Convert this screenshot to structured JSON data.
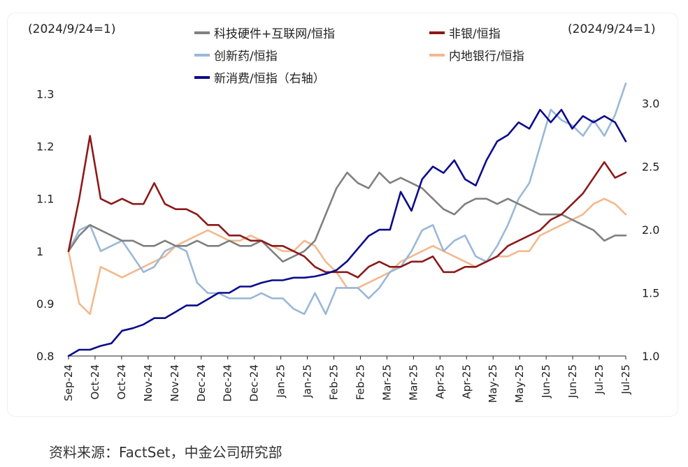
{
  "chart_data": {
    "type": "line",
    "left_axis_note": "(2024/9/24=1)",
    "right_axis_note": "(2024/9/24=1)",
    "ylim_left": [
      0.8,
      1.33
    ],
    "ylim_right": [
      1.0,
      3.2
    ],
    "yticks_left": [
      "0.8",
      "0.9",
      "1",
      "1.1",
      "1.2",
      "1.3"
    ],
    "yticks_right": [
      "1.0",
      "1.5",
      "2.0",
      "2.5",
      "3.0"
    ],
    "xticks": [
      "Sep-24",
      "Oct-24",
      "Oct-24",
      "Nov-24",
      "Nov-24",
      "Dec-24",
      "Dec-24",
      "Dec-24",
      "Jan-25",
      "Jan-25",
      "Feb-25",
      "Feb-25",
      "Mar-25",
      "Mar-25",
      "Apr-25",
      "Apr-25",
      "May-25",
      "May-25",
      "Jun-25",
      "Jun-25",
      "Jul-25",
      "Jul-25"
    ],
    "grid": false,
    "legend_position": "top",
    "series": [
      {
        "name": "科技硬件+互联网/恒指",
        "color": "#808080",
        "axis": "left",
        "values": [
          1.0,
          1.03,
          1.05,
          1.04,
          1.03,
          1.02,
          1.02,
          1.01,
          1.01,
          1.02,
          1.01,
          1.01,
          1.02,
          1.01,
          1.01,
          1.02,
          1.01,
          1.01,
          1.02,
          1.0,
          0.98,
          0.99,
          1.0,
          1.02,
          1.07,
          1.12,
          1.15,
          1.13,
          1.12,
          1.15,
          1.13,
          1.14,
          1.13,
          1.12,
          1.1,
          1.08,
          1.07,
          1.09,
          1.1,
          1.1,
          1.09,
          1.1,
          1.09,
          1.08,
          1.07,
          1.07,
          1.07,
          1.06,
          1.05,
          1.04,
          1.02,
          1.03,
          1.03
        ]
      },
      {
        "name": "非银/恒指",
        "color": "#8b1a1a",
        "axis": "left",
        "values": [
          1.0,
          1.1,
          1.22,
          1.1,
          1.09,
          1.1,
          1.09,
          1.09,
          1.13,
          1.09,
          1.08,
          1.08,
          1.07,
          1.05,
          1.05,
          1.03,
          1.03,
          1.02,
          1.02,
          1.01,
          1.01,
          1.0,
          0.99,
          0.97,
          0.96,
          0.96,
          0.96,
          0.95,
          0.97,
          0.98,
          0.97,
          0.97,
          0.98,
          0.98,
          0.99,
          0.96,
          0.96,
          0.97,
          0.97,
          0.98,
          0.99,
          1.01,
          1.02,
          1.03,
          1.04,
          1.06,
          1.07,
          1.09,
          1.11,
          1.14,
          1.17,
          1.14,
          1.15
        ]
      },
      {
        "name": "创新药/恒指",
        "color": "#9ab8d8",
        "axis": "left",
        "values": [
          1.0,
          1.04,
          1.05,
          1.0,
          1.01,
          1.02,
          0.99,
          0.96,
          0.97,
          1.0,
          1.01,
          1.0,
          0.94,
          0.92,
          0.92,
          0.91,
          0.91,
          0.91,
          0.92,
          0.91,
          0.91,
          0.89,
          0.88,
          0.92,
          0.88,
          0.93,
          0.93,
          0.93,
          0.91,
          0.93,
          0.96,
          0.97,
          1.0,
          1.04,
          1.05,
          1.0,
          1.02,
          1.03,
          0.99,
          0.98,
          1.01,
          1.05,
          1.1,
          1.13,
          1.2,
          1.27,
          1.25,
          1.24,
          1.22,
          1.25,
          1.22,
          1.26,
          1.32
        ]
      },
      {
        "name": "内地银行/恒指",
        "color": "#f2b98e",
        "axis": "left",
        "values": [
          1.0,
          0.9,
          0.88,
          0.97,
          0.96,
          0.95,
          0.96,
          0.97,
          0.98,
          0.99,
          1.01,
          1.02,
          1.03,
          1.04,
          1.03,
          1.02,
          1.02,
          1.03,
          1.02,
          1.01,
          1.0,
          1.0,
          1.02,
          1.01,
          0.98,
          0.96,
          0.93,
          0.93,
          0.94,
          0.95,
          0.96,
          0.98,
          0.99,
          1.0,
          1.01,
          1.0,
          0.99,
          0.98,
          0.97,
          0.98,
          0.99,
          0.99,
          1.0,
          1.0,
          1.03,
          1.04,
          1.05,
          1.06,
          1.07,
          1.09,
          1.1,
          1.09,
          1.07
        ]
      },
      {
        "name": "新消费/恒指（右轴）",
        "color": "#0b0b8c",
        "axis": "right",
        "values": [
          1.0,
          1.05,
          1.05,
          1.08,
          1.1,
          1.2,
          1.22,
          1.25,
          1.3,
          1.3,
          1.35,
          1.4,
          1.4,
          1.45,
          1.5,
          1.5,
          1.55,
          1.55,
          1.58,
          1.6,
          1.6,
          1.62,
          1.62,
          1.63,
          1.65,
          1.68,
          1.75,
          1.85,
          1.95,
          2.0,
          2.0,
          2.3,
          2.15,
          2.4,
          2.5,
          2.45,
          2.55,
          2.4,
          2.35,
          2.55,
          2.7,
          2.75,
          2.85,
          2.8,
          2.95,
          2.85,
          2.95,
          2.8,
          2.9,
          2.85,
          2.9,
          2.85,
          2.7
        ]
      }
    ]
  },
  "source": "资料来源：FactSet，中金公司研究部"
}
